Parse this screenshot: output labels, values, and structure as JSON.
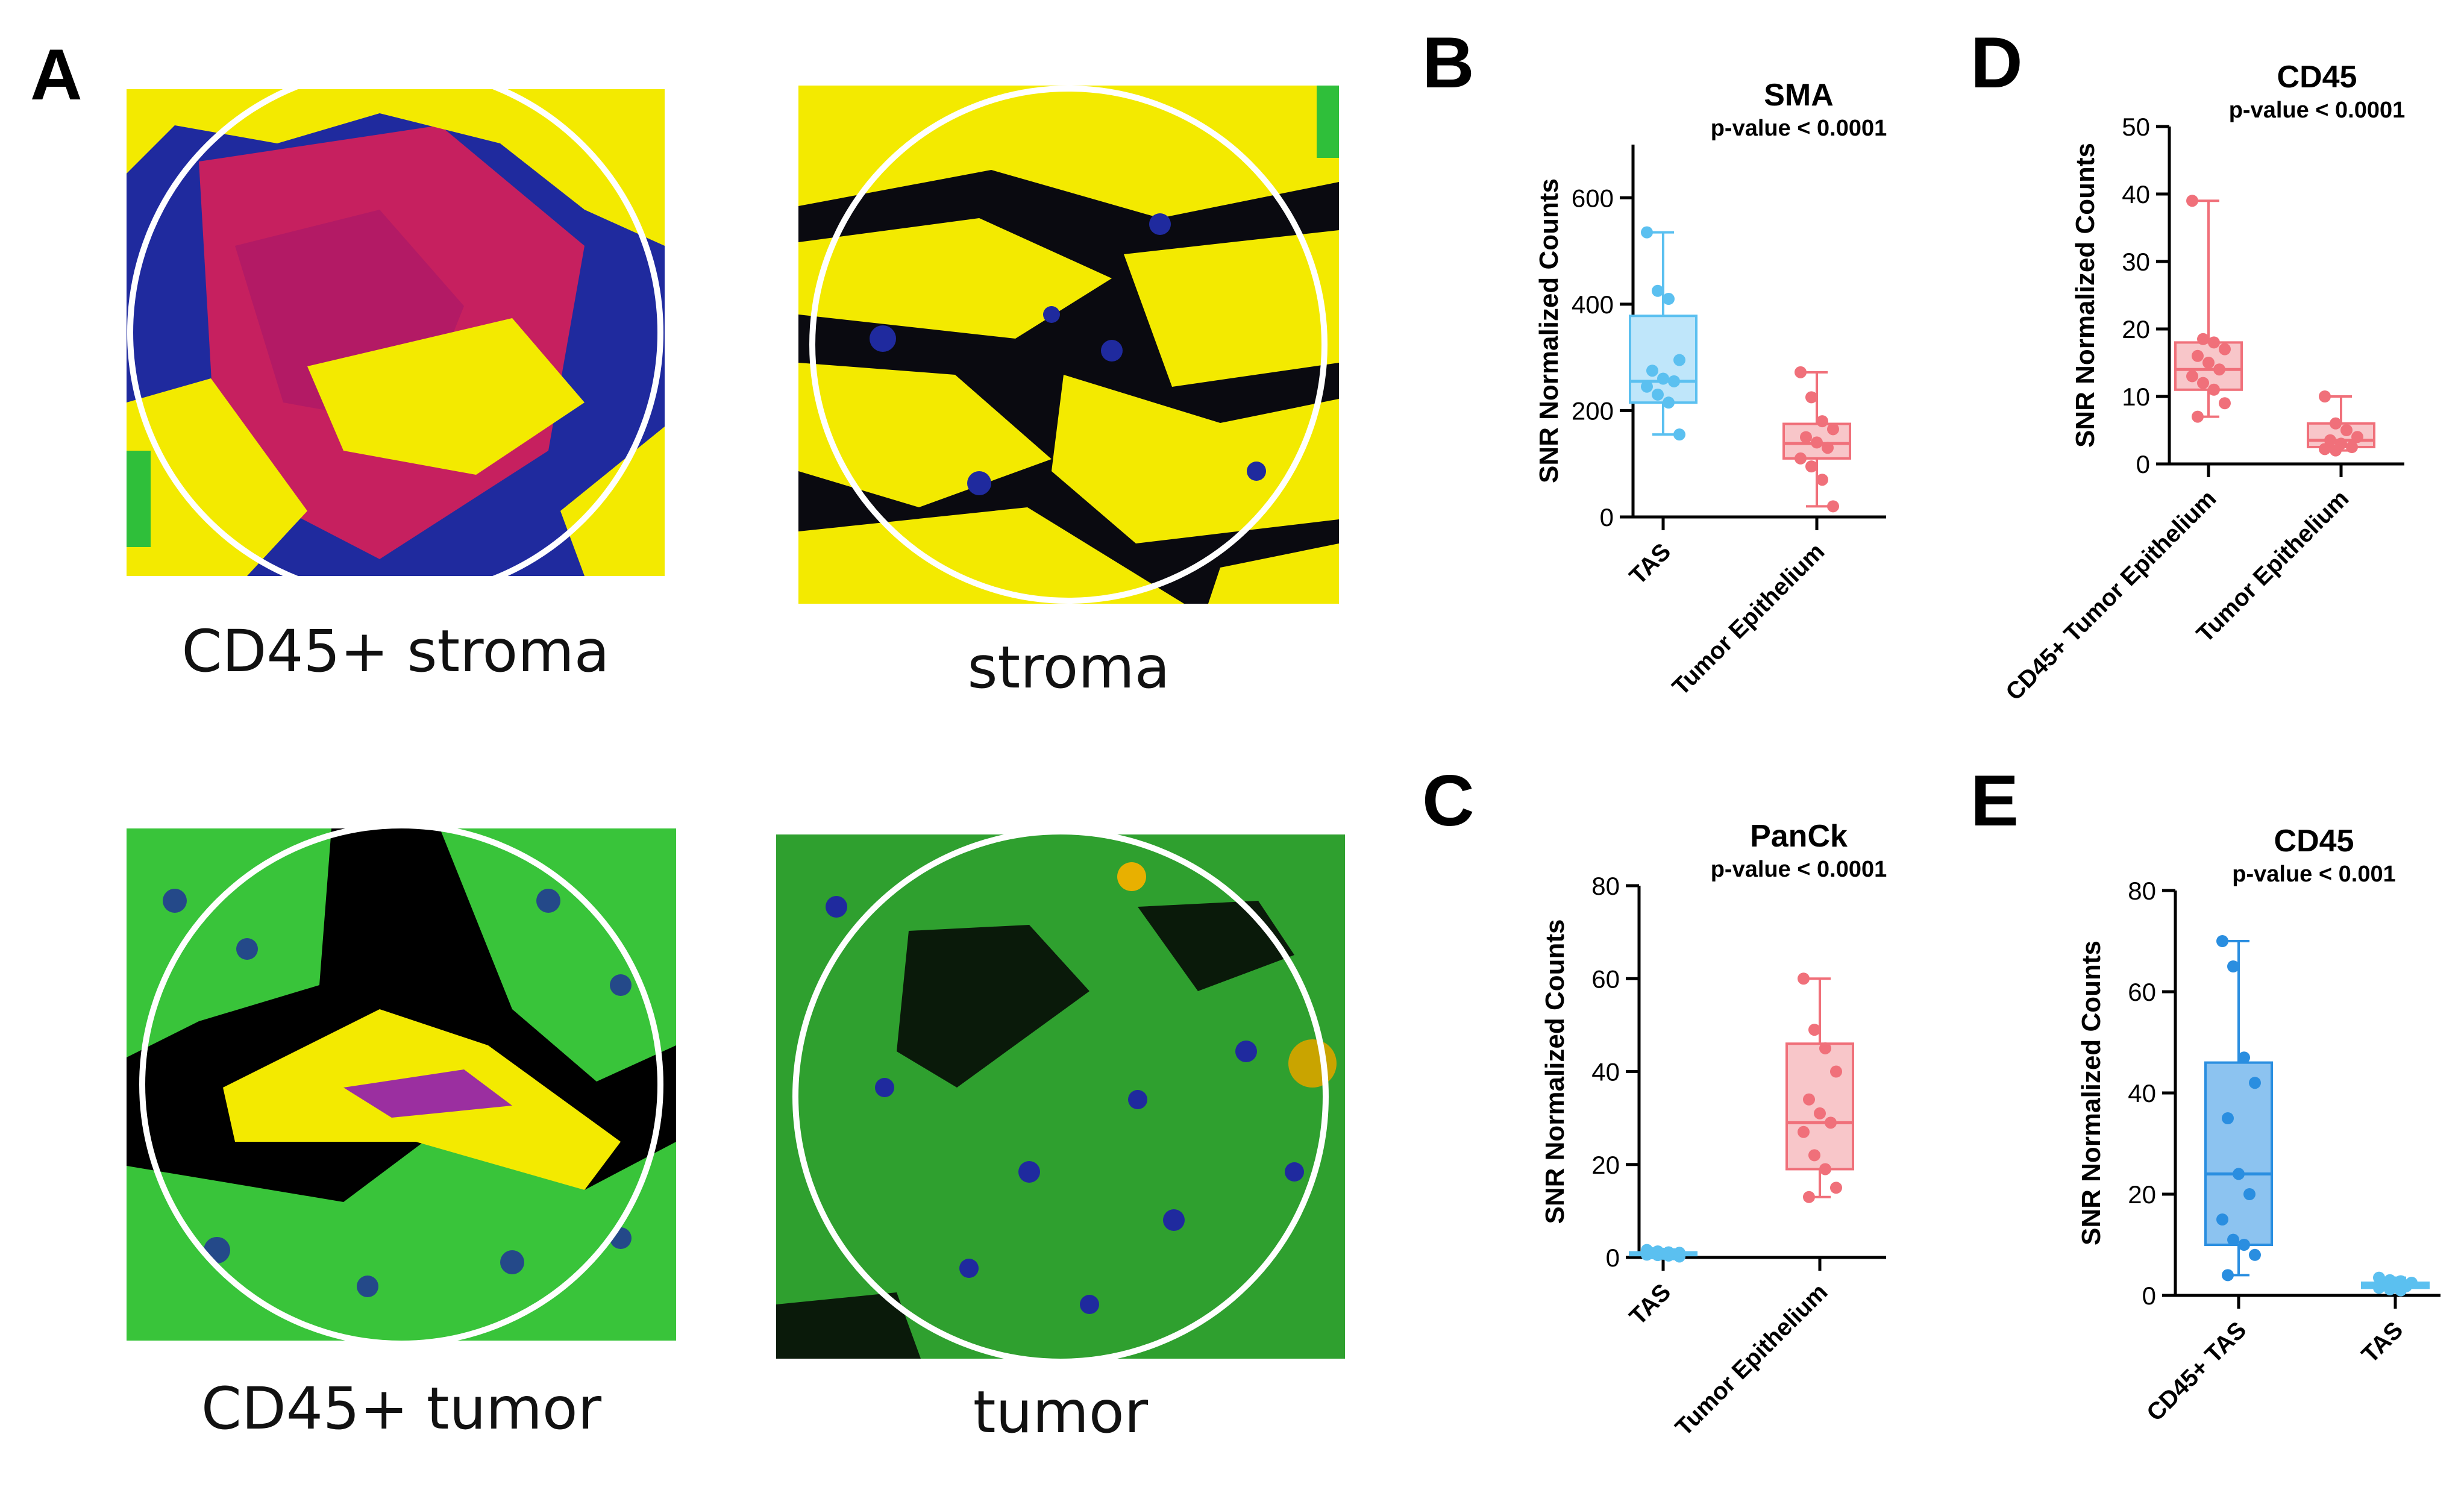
{
  "panel_letters": {
    "A": "A",
    "B": "B",
    "C": "C",
    "D": "D",
    "E": "E"
  },
  "images": [
    {
      "id": "cd45-stroma",
      "label": "CD45+ stroma"
    },
    {
      "id": "stroma",
      "label": "stroma"
    },
    {
      "id": "cd45-tumor",
      "label": "CD45+ tumor"
    },
    {
      "id": "tumor",
      "label": "tumor"
    }
  ],
  "colors": {
    "tas": "#5bc0f0",
    "tas_fill": "#bfe6fa",
    "tumor": "#f0707a",
    "tumor_fill": "#f8c6c9",
    "cd45tas": "#2a8ee0",
    "cd45tas_fill": "#8cc3f0",
    "stroma_yellow": "#f3ea00",
    "nuclei_blue": "#1f2a9e",
    "cell_red": "#e0205a",
    "panck_green": "#39c43a"
  },
  "chart_data": [
    {
      "panel": "B",
      "type": "box",
      "title": "SMA",
      "subtitle": "p-value < 0.0001",
      "ylabel": "SNR Normalized Counts",
      "ylim": [
        0,
        700
      ],
      "yticks": [
        0,
        200,
        400,
        600
      ],
      "categories": [
        "TAS",
        "Tumor Epithelium"
      ],
      "series": [
        {
          "category": "TAS",
          "color": "tas",
          "min": 155,
          "q1": 215,
          "median": 255,
          "q3": 378,
          "max": 535,
          "points": [
            535,
            425,
            410,
            295,
            275,
            260,
            255,
            245,
            230,
            215,
            155
          ]
        },
        {
          "category": "Tumor Epithelium",
          "color": "tumor",
          "min": 20,
          "q1": 110,
          "median": 138,
          "q3": 175,
          "max": 272,
          "points": [
            272,
            225,
            180,
            165,
            150,
            140,
            130,
            110,
            95,
            70,
            20
          ]
        }
      ]
    },
    {
      "panel": "C",
      "type": "box",
      "title": "PanCk",
      "subtitle": "p-value < 0.0001",
      "ylabel": "SNR Normalized Counts",
      "ylim": [
        0,
        80
      ],
      "yticks": [
        0,
        20,
        40,
        60,
        80
      ],
      "categories": [
        "TAS",
        "Tumor Epithelium"
      ],
      "series": [
        {
          "category": "TAS",
          "color": "tas",
          "min": 0.2,
          "q1": 0.5,
          "median": 0.8,
          "q3": 1.1,
          "max": 1.6,
          "points": [
            1.6,
            1.3,
            1.1,
            1.0,
            0.9,
            0.8,
            0.7,
            0.6,
            0.5,
            0.4,
            0.2
          ]
        },
        {
          "category": "Tumor Epithelium",
          "color": "tumor",
          "min": 13,
          "q1": 19,
          "median": 29,
          "q3": 46,
          "max": 60,
          "points": [
            60,
            49,
            45,
            40,
            34,
            31,
            29,
            27,
            22,
            19,
            15,
            13
          ]
        }
      ]
    },
    {
      "panel": "D",
      "type": "box",
      "title": "CD45",
      "subtitle": "p-value < 0.0001",
      "ylabel": "SNR Normalized Counts",
      "ylim": [
        0,
        50
      ],
      "yticks": [
        0,
        10,
        20,
        30,
        40,
        50
      ],
      "categories": [
        "CD45+ Tumor Epithelium",
        "Tumor Epithelium"
      ],
      "series": [
        {
          "category": "CD45+ Tumor Epithelium",
          "color": "tumor",
          "min": 7,
          "q1": 11,
          "median": 14,
          "q3": 18,
          "max": 39,
          "points": [
            39,
            18.5,
            18,
            17,
            16,
            15,
            14,
            13,
            12,
            11,
            9,
            7
          ]
        },
        {
          "category": "Tumor Epithelium",
          "color": "tumor",
          "min": 2,
          "q1": 2.5,
          "median": 3.5,
          "q3": 6,
          "max": 10,
          "points": [
            10,
            6,
            5,
            4,
            3.5,
            3,
            2.5,
            2.2,
            2
          ]
        }
      ]
    },
    {
      "panel": "E",
      "type": "box",
      "title": "CD45",
      "subtitle": "p-value < 0.001",
      "ylabel": "SNR Normalized Counts",
      "ylim": [
        0,
        80
      ],
      "yticks": [
        0,
        20,
        40,
        60,
        80
      ],
      "categories": [
        "CD45+ TAS",
        "TAS"
      ],
      "series": [
        {
          "category": "CD45+ TAS",
          "color": "cd45tas",
          "min": 4,
          "q1": 10,
          "median": 24,
          "q3": 46,
          "max": 70,
          "points": [
            70,
            65,
            47,
            42,
            35,
            24,
            20,
            15,
            11,
            10,
            8,
            4
          ]
        },
        {
          "category": "TAS",
          "color": "tas",
          "min": 1,
          "q1": 1.5,
          "median": 2,
          "q3": 2.5,
          "max": 3.5,
          "points": [
            3.5,
            3,
            2.8,
            2.5,
            2.2,
            2,
            1.8,
            1.5,
            1.2,
            1
          ]
        }
      ]
    }
  ]
}
